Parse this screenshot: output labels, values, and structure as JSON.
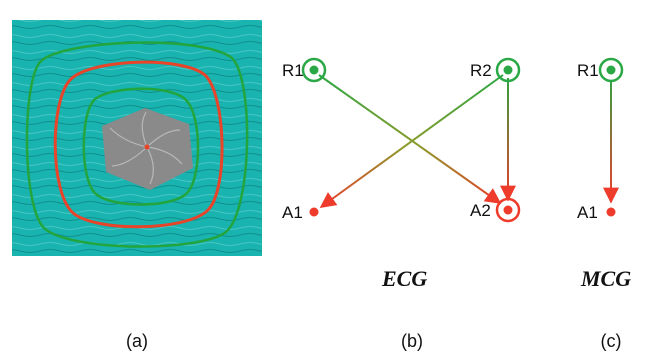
{
  "panels": [
    {
      "id": "a",
      "caption": "(a)"
    },
    {
      "id": "b",
      "caption": "(b)",
      "graph_title": "ECG"
    },
    {
      "id": "c",
      "caption": "(c)",
      "graph_title": "MCG"
    }
  ],
  "colors": {
    "background_flow": "#19b3b0",
    "green_contour": "#22a53c",
    "red_contour": "#e8442a",
    "repeller_node": "#2aa845",
    "attractor_node": "#ee3b2b",
    "center_hexagon": "#8a8a8a"
  },
  "graphs": {
    "ecg": {
      "nodes": [
        "R1",
        "R2",
        "A1",
        "A2"
      ],
      "edges": [
        {
          "from": "R1",
          "to": "A2"
        },
        {
          "from": "R2",
          "to": "A1"
        },
        {
          "from": "R2",
          "to": "A2"
        }
      ]
    },
    "mcg": {
      "nodes": [
        "R1",
        "A1"
      ],
      "edges": [
        {
          "from": "R1",
          "to": "A1"
        }
      ]
    }
  }
}
